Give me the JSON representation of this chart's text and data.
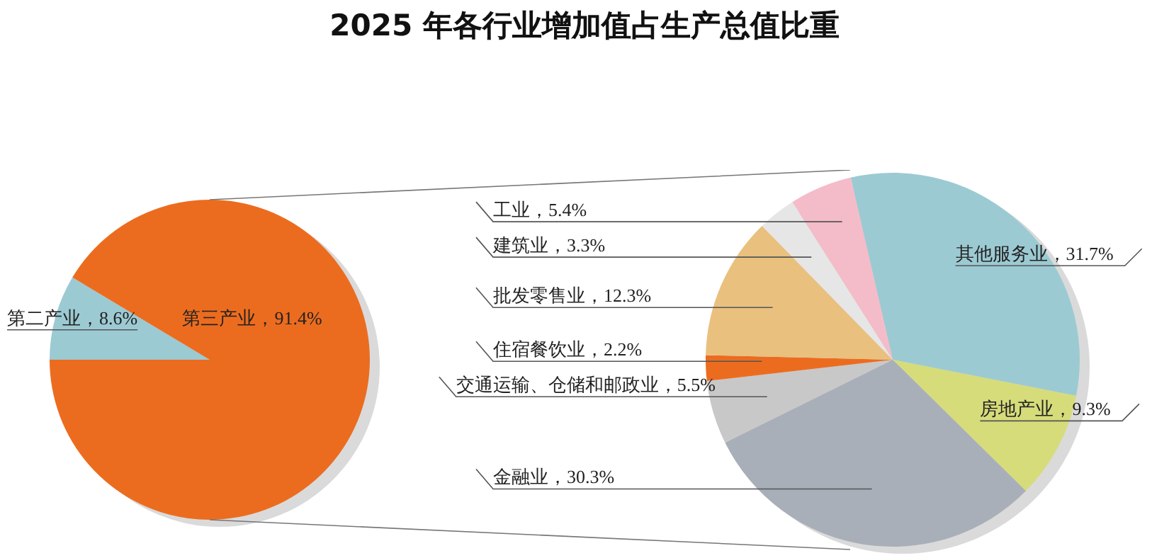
{
  "chart_data": [
    {
      "type": "pie",
      "title": "2025 年各行业增加值占生产总值比重",
      "categories": [
        "第二产业",
        "第三产业"
      ],
      "values": [
        8.6,
        91.4
      ],
      "colors": [
        "#9ccad3",
        "#ec6c1f"
      ],
      "value_labels": [
        "8.6%",
        "91.4%"
      ]
    },
    {
      "type": "pie",
      "categories": [
        "其他服务业",
        "房地产业",
        "金融业",
        "交通运输、仓储和邮政业",
        "住宿餐饮业",
        "批发零售业",
        "建筑业",
        "工业"
      ],
      "values": [
        31.7,
        9.3,
        30.3,
        5.5,
        2.2,
        12.3,
        3.3,
        5.4
      ],
      "colors": [
        "#9ccad3",
        "#d6dc7a",
        "#a9afb9",
        "#c8c8c8",
        "#ec6c1f",
        "#e9c07e",
        "#e6e6e6",
        "#f4bcc8"
      ],
      "value_labels": [
        "31.7%",
        "9.3%",
        "30.3%",
        "5.5%",
        "2.2%",
        "12.3%",
        "3.3%",
        "5.4%"
      ]
    }
  ]
}
